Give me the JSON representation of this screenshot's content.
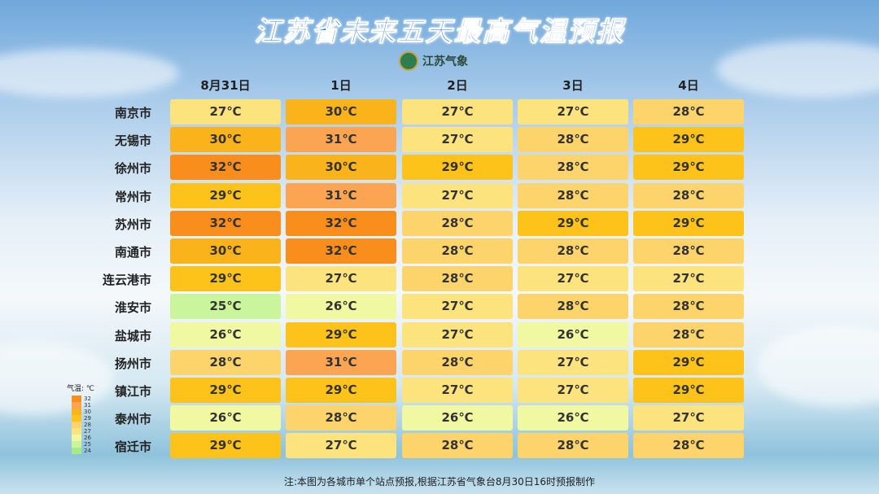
{
  "header": {
    "title": "江苏省未来五天最高气温预报",
    "logo": "江苏气象"
  },
  "table": {
    "columns": [
      "8月31日",
      "1日",
      "2日",
      "3日",
      "4日"
    ],
    "rows": [
      {
        "city": "南京市",
        "cells": [
          "27℃",
          "30℃",
          "27℃",
          "27℃",
          "28℃"
        ]
      },
      {
        "city": "无锡市",
        "cells": [
          "30℃",
          "31℃",
          "27℃",
          "28℃",
          "29℃"
        ]
      },
      {
        "city": "徐州市",
        "cells": [
          "32℃",
          "30℃",
          "29℃",
          "28℃",
          "29℃"
        ]
      },
      {
        "city": "常州市",
        "cells": [
          "29℃",
          "31℃",
          "27℃",
          "28℃",
          "28℃"
        ]
      },
      {
        "city": "苏州市",
        "cells": [
          "32℃",
          "32℃",
          "28℃",
          "29℃",
          "29℃"
        ]
      },
      {
        "city": "南通市",
        "cells": [
          "30℃",
          "32℃",
          "28℃",
          "28℃",
          "28℃"
        ]
      },
      {
        "city": "连云港市",
        "cells": [
          "29℃",
          "27℃",
          "28℃",
          "27℃",
          "27℃"
        ]
      },
      {
        "city": "淮安市",
        "cells": [
          "25℃",
          "26℃",
          "27℃",
          "28℃",
          "28℃"
        ]
      },
      {
        "city": "盐城市",
        "cells": [
          "26℃",
          "29℃",
          "27℃",
          "26℃",
          "28℃"
        ]
      },
      {
        "city": "扬州市",
        "cells": [
          "28℃",
          "31℃",
          "28℃",
          "27℃",
          "29℃"
        ]
      },
      {
        "city": "镇江市",
        "cells": [
          "29℃",
          "29℃",
          "27℃",
          "27℃",
          "29℃"
        ]
      },
      {
        "city": "泰州市",
        "cells": [
          "26℃",
          "28℃",
          "26℃",
          "26℃",
          "27℃"
        ]
      },
      {
        "city": "宿迁市",
        "cells": [
          "29℃",
          "27℃",
          "28℃",
          "28℃",
          "28℃"
        ]
      }
    ]
  },
  "legend": {
    "title": "气温: ℃",
    "items": [
      {
        "label": "32",
        "color": "#f98e1c"
      },
      {
        "label": "31",
        "color": "#fba552"
      },
      {
        "label": "30",
        "color": "#fbb31c"
      },
      {
        "label": "29",
        "color": "#fdc31a"
      },
      {
        "label": "28",
        "color": "#fdd46c"
      },
      {
        "label": "27",
        "color": "#fde37e"
      },
      {
        "label": "26",
        "color": "#f1f8a2"
      },
      {
        "label": "25",
        "color": "#cbf59c"
      },
      {
        "label": "24",
        "color": "#a6ea88"
      }
    ]
  },
  "footer": "注:本图为各城市单个站点预报,根据江苏省气象台8月30日16时预报制作"
}
